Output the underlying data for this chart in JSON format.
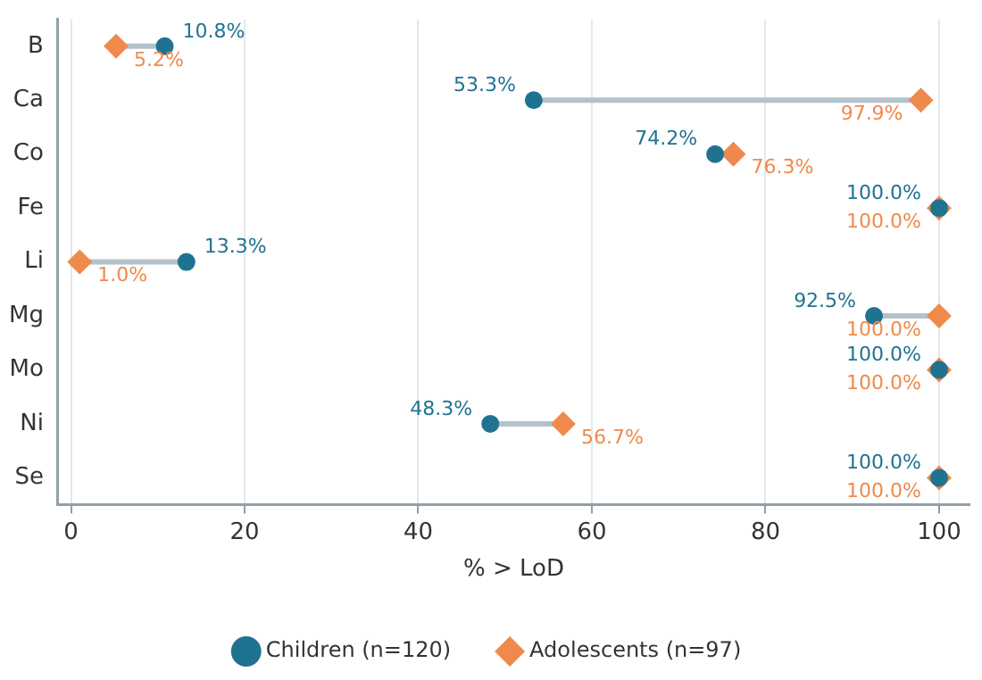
{
  "chart_data": {
    "type": "scatter",
    "orientation": "horizontal",
    "xlabel": "% > LoD",
    "categories": [
      "B",
      "Ca",
      "Co",
      "Fe",
      "Li",
      "Mg",
      "Mo",
      "Ni",
      "Se"
    ],
    "series": [
      {
        "name": "Children (n=120)",
        "color": "#1f7391",
        "marker": "circle",
        "values": [
          10.8,
          53.3,
          74.2,
          100,
          13.3,
          92.5,
          100,
          48.3,
          100
        ],
        "value_labels": [
          "10.8%",
          "53.3%",
          "74.2%",
          "100.0%",
          "13.3%",
          "92.5%",
          "100.0%",
          "48.3%",
          "100.0%"
        ]
      },
      {
        "name": "Adolescents (n=97)",
        "color": "#ef8a4c",
        "marker": "diamond",
        "values": [
          5.2,
          97.9,
          76.3,
          100,
          1.0,
          100,
          100,
          56.7,
          100
        ],
        "value_labels": [
          "5.2%",
          "97.9%",
          "76.3%",
          "100.0%",
          "1.0%",
          "100.0%",
          "100.0%",
          "56.7%",
          "100.0%"
        ]
      }
    ],
    "xlim": [
      -1.5,
      103.5
    ],
    "xticks": [
      0,
      20,
      40,
      60,
      80,
      100
    ],
    "grid": "x",
    "legend": "bottom"
  }
}
